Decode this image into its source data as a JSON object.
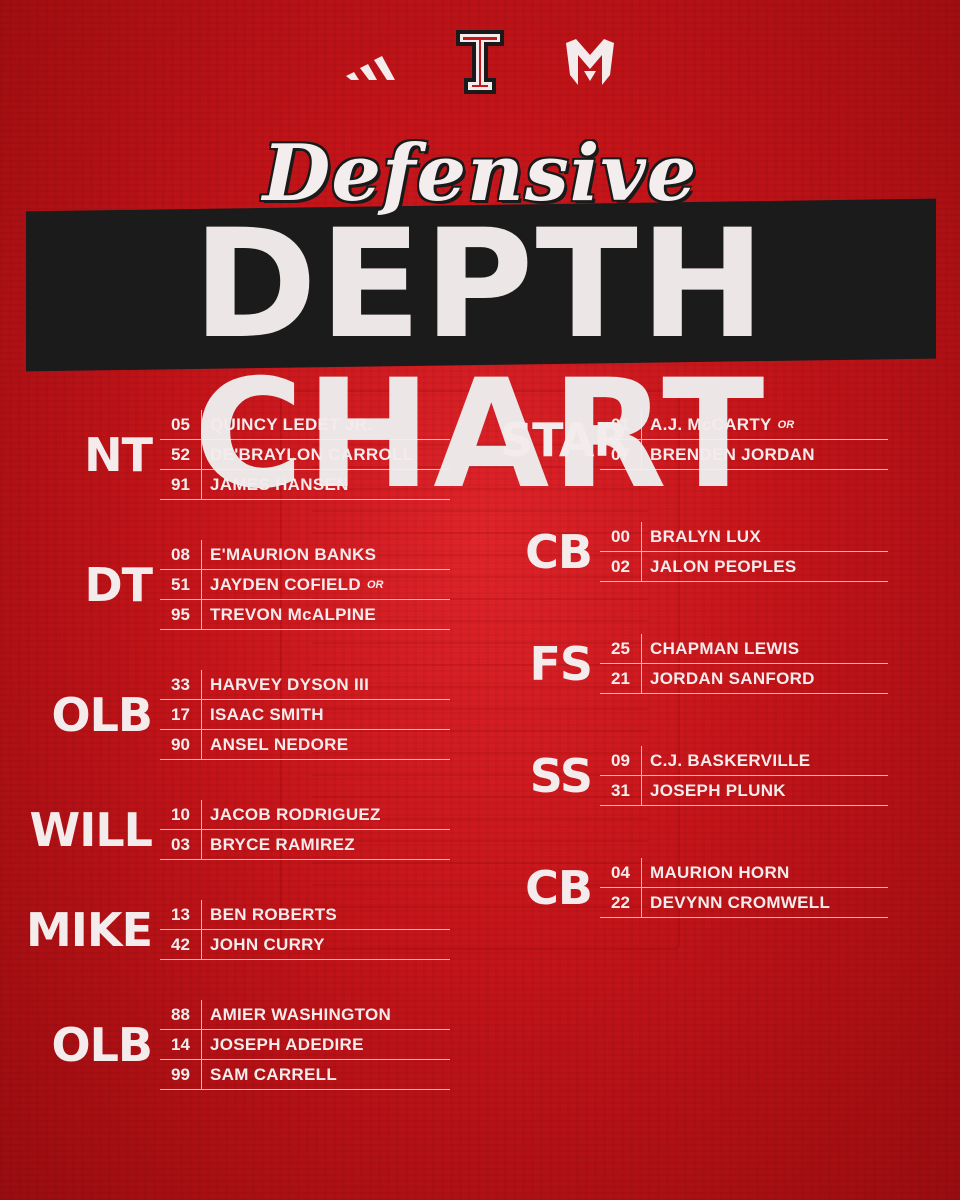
{
  "header": {
    "script_title": "Defensive",
    "main_title": "DEPTH CHART"
  },
  "logos": [
    "adidas-logo",
    "double-t-logo",
    "masked-rider-logo"
  ],
  "colors": {
    "background": "#c8161b",
    "band": "#1b1b1b",
    "text": "#f4ecec"
  },
  "left_groups": [
    {
      "position": "NT",
      "players": [
        {
          "number": "05",
          "name": "QUINCY LEDET JR.",
          "or": ""
        },
        {
          "number": "52",
          "name": "DE'BRAYLON CARROLL",
          "or": ""
        },
        {
          "number": "91",
          "name": "JAMES HANSEN",
          "or": ""
        }
      ]
    },
    {
      "position": "DT",
      "players": [
        {
          "number": "08",
          "name": "E'MAURION BANKS",
          "or": ""
        },
        {
          "number": "51",
          "name": "JAYDEN COFIELD",
          "or": "OR"
        },
        {
          "number": "95",
          "name": "TREVON McALPINE",
          "or": ""
        }
      ]
    },
    {
      "position": "OLB",
      "players": [
        {
          "number": "33",
          "name": "HARVEY DYSON III",
          "or": ""
        },
        {
          "number": "17",
          "name": "ISAAC SMITH",
          "or": ""
        },
        {
          "number": "90",
          "name": "ANSEL NEDORE",
          "or": ""
        }
      ]
    },
    {
      "position": "WILL",
      "players": [
        {
          "number": "10",
          "name": "JACOB RODRIGUEZ",
          "or": ""
        },
        {
          "number": "03",
          "name": "BRYCE RAMIREZ",
          "or": ""
        }
      ]
    },
    {
      "position": "MIKE",
      "players": [
        {
          "number": "13",
          "name": "BEN ROBERTS",
          "or": ""
        },
        {
          "number": "42",
          "name": "JOHN CURRY",
          "or": ""
        }
      ]
    },
    {
      "position": "OLB",
      "players": [
        {
          "number": "88",
          "name": "AMIER WASHINGTON",
          "or": ""
        },
        {
          "number": "14",
          "name": "JOSEPH ADEDIRE",
          "or": ""
        },
        {
          "number": "99",
          "name": "SAM CARRELL",
          "or": ""
        }
      ]
    }
  ],
  "right_groups": [
    {
      "position": "STAR",
      "players": [
        {
          "number": "01",
          "name": "A.J. McCARTY",
          "or": "OR"
        },
        {
          "number": "07",
          "name": "BRENDEN JORDAN",
          "or": ""
        }
      ]
    },
    {
      "position": "CB",
      "players": [
        {
          "number": "00",
          "name": "BRALYN LUX",
          "or": ""
        },
        {
          "number": "02",
          "name": "JALON PEOPLES",
          "or": ""
        }
      ]
    },
    {
      "position": "FS",
      "players": [
        {
          "number": "25",
          "name": "CHAPMAN LEWIS",
          "or": ""
        },
        {
          "number": "21",
          "name": "JORDAN SANFORD",
          "or": ""
        }
      ]
    },
    {
      "position": "SS",
      "players": [
        {
          "number": "09",
          "name": "C.J. BASKERVILLE",
          "or": ""
        },
        {
          "number": "31",
          "name": "JOSEPH PLUNK",
          "or": ""
        }
      ]
    },
    {
      "position": "CB",
      "players": [
        {
          "number": "04",
          "name": "MAURION HORN",
          "or": ""
        },
        {
          "number": "22",
          "name": "DEVYNN CROMWELL",
          "or": ""
        }
      ]
    }
  ]
}
